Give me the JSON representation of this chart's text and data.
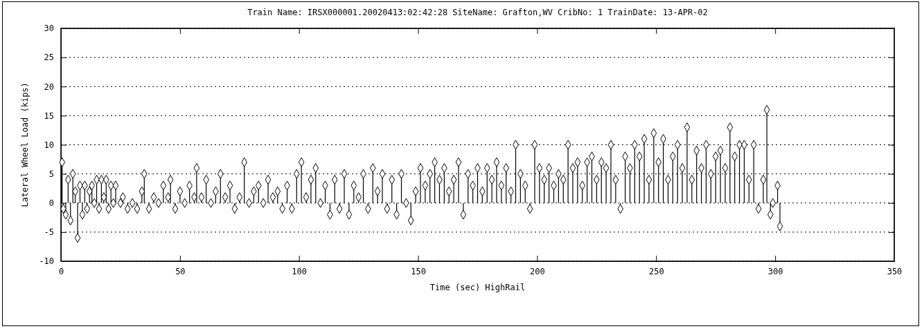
{
  "chart_data": {
    "type": "lollipop",
    "title": "Train Name: IRSX000001.20020413:02:42:28     SiteName: Grafton,WV     CribNo: 1     TrainDate: 13-APR-02",
    "xlabel": "Time (sec)  HighRail",
    "ylabel": "Lateral Wheel Load (kips)",
    "color": "#000000",
    "marker": "diamond",
    "grid": "y",
    "xlim": [
      0,
      350
    ],
    "xticks": [
      0,
      50,
      100,
      150,
      200,
      250,
      300,
      350
    ],
    "ylim": [
      -10,
      30
    ],
    "yticks": [
      -10,
      -5,
      0,
      5,
      10,
      15,
      20,
      25,
      30
    ],
    "x": [
      0.5,
      1,
      2,
      3,
      4,
      5,
      6,
      7,
      8,
      9,
      10,
      11,
      12,
      13,
      14,
      15,
      16,
      17,
      18,
      19,
      20,
      21,
      22,
      23,
      25,
      26,
      28,
      30,
      32,
      34,
      35,
      37,
      39,
      41,
      43,
      45,
      46,
      48,
      50,
      52,
      54,
      56,
      57,
      59,
      61,
      63,
      65,
      67,
      69,
      71,
      73,
      75,
      77,
      79,
      81,
      83,
      85,
      87,
      89,
      91,
      93,
      95,
      97,
      99,
      101,
      103,
      105,
      107,
      109,
      111,
      113,
      115,
      117,
      119,
      121,
      123,
      125,
      127,
      129,
      131,
      133,
      135,
      137,
      139,
      141,
      143,
      145,
      147,
      149,
      151,
      153,
      155,
      157,
      159,
      161,
      163,
      165,
      167,
      169,
      171,
      173,
      175,
      177,
      179,
      181,
      183,
      185,
      187,
      189,
      191,
      193,
      195,
      197,
      199,
      201,
      203,
      205,
      207,
      209,
      211,
      213,
      215,
      217,
      219,
      221,
      223,
      225,
      227,
      229,
      231,
      233,
      235,
      237,
      239,
      241,
      243,
      245,
      247,
      249,
      251,
      253,
      255,
      257,
      259,
      261,
      263,
      265,
      267,
      269,
      271,
      273,
      275,
      277,
      279,
      281,
      283,
      285,
      287,
      289,
      291,
      293,
      295,
      296.5,
      298,
      299,
      301,
      302
    ],
    "values": [
      7,
      -1,
      -2,
      4,
      -3,
      5,
      2,
      -6,
      3,
      -2,
      3,
      -1,
      2,
      3,
      0,
      4,
      -1,
      4,
      1,
      4,
      -1,
      3,
      0,
      3,
      0,
      1,
      -1,
      0,
      -1,
      2,
      5,
      -1,
      1,
      0,
      3,
      1,
      4,
      -1,
      2,
      0,
      3,
      1,
      6,
      1,
      4,
      0,
      2,
      5,
      1,
      3,
      -1,
      1,
      7,
      0,
      2,
      3,
      0,
      4,
      1,
      2,
      -1,
      3,
      -1,
      5,
      7,
      1,
      4,
      6,
      0,
      3,
      -2,
      4,
      -1,
      5,
      -2,
      3,
      1,
      5,
      -1,
      6,
      2,
      5,
      -1,
      4,
      -2,
      5,
      0,
      -3,
      2,
      6,
      3,
      5,
      7,
      4,
      6,
      2,
      4,
      7,
      -2,
      5,
      3,
      6,
      2,
      6,
      4,
      7,
      3,
      6,
      2,
      10,
      5,
      3,
      -1,
      10,
      6,
      4,
      6,
      3,
      5,
      4,
      10,
      6,
      7,
      3,
      7,
      8,
      4,
      7,
      6,
      10,
      4,
      -1,
      8,
      6,
      10,
      8,
      11,
      4,
      12,
      7,
      11,
      4,
      8,
      10,
      6,
      13,
      4,
      9,
      6,
      10,
      5,
      8,
      9,
      6,
      13,
      8,
      10,
      10,
      4,
      10,
      -1,
      4,
      16,
      -2,
      0,
      3,
      -4
    ]
  }
}
